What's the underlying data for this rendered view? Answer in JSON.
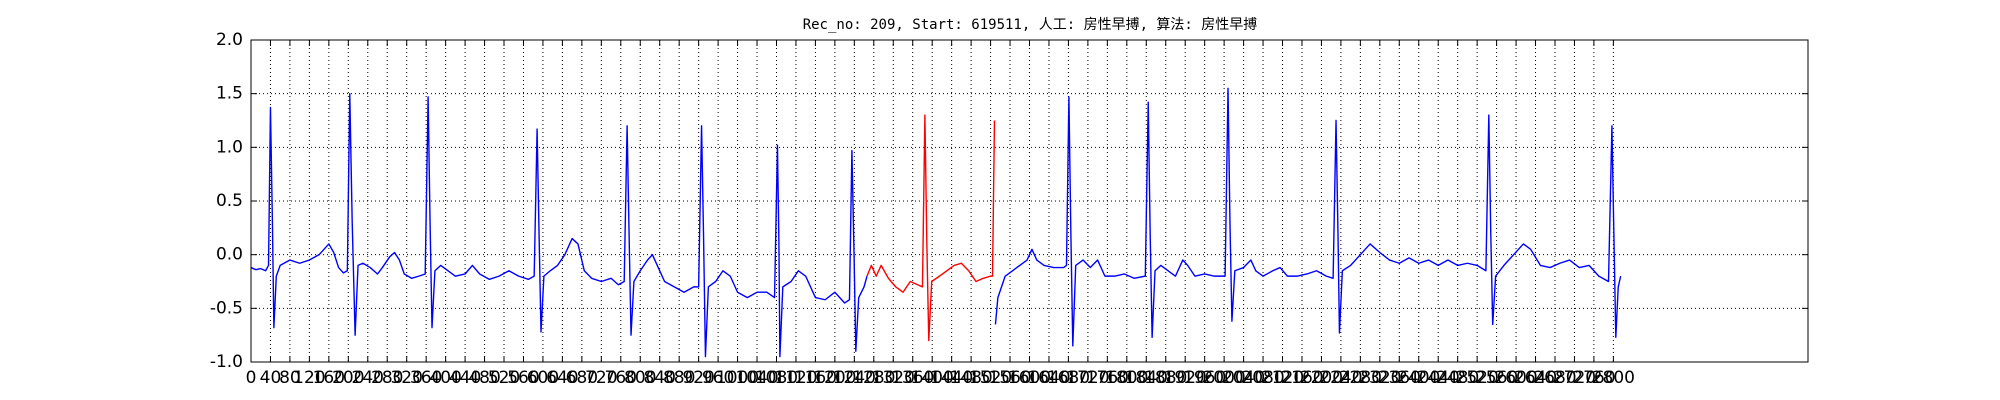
{
  "chart_data": {
    "type": "line",
    "title": "Rec_no: 209, Start: 619511, 人工: 房性早搏, 算法: 房性早搏",
    "xlim": [
      0,
      3200
    ],
    "xticks": [
      0,
      40,
      80,
      120,
      160,
      200,
      240,
      280,
      320,
      360,
      400,
      440,
      480,
      520,
      560,
      600,
      640,
      680,
      720,
      760,
      800,
      840,
      880,
      920,
      960,
      1000,
      1040,
      1080,
      1120,
      1160,
      1200,
      1240,
      1280,
      1320,
      1360,
      1400,
      1440,
      1480,
      1520,
      1560,
      1600,
      1640,
      1680,
      1720,
      1760,
      1800,
      1840,
      1880,
      1920,
      1960,
      2000,
      2040,
      2080,
      2120,
      2160,
      2200,
      2240,
      2280,
      2320,
      2360,
      2400,
      2440,
      2480,
      2520,
      2560,
      2600,
      2640,
      2680,
      2720,
      2760,
      2800
    ],
    "ylim": [
      -1,
      2
    ],
    "yticks": [
      {
        "value": -1,
        "label": "-1.0"
      },
      {
        "value": -0.5,
        "label": "-0.5"
      },
      {
        "value": 0,
        "label": "0.0"
      },
      {
        "value": 0.5,
        "label": "0.5"
      },
      {
        "value": 1,
        "label": "1.0"
      },
      {
        "value": 1.5,
        "label": "1.5"
      },
      {
        "value": 2,
        "label": "2.0"
      }
    ],
    "grid": true,
    "series": [
      {
        "color": "#0000ff",
        "x": [
          0,
          10,
          20,
          30,
          36,
          40,
          44,
          47,
          52,
          60,
          80,
          100,
          120,
          140,
          150,
          160,
          170,
          180,
          190,
          198,
          203,
          208,
          214,
          220,
          230,
          245,
          260,
          270,
          285,
          295,
          305,
          315,
          330,
          345,
          358,
          364,
          368,
          372,
          378,
          390,
          405,
          420,
          440,
          455,
          470,
          490,
          510,
          530,
          550,
          570,
          582,
          588,
          592,
          596,
          602,
          615,
          630,
          645,
          660,
          672,
          685,
          700,
          720,
          740,
          755,
          767,
          773,
          777,
          781,
          787,
          800,
          815,
          825,
          835,
          850,
          870,
          890,
          910,
          920,
          926,
          930,
          934,
          940,
          955,
          970,
          985,
          1000,
          1020,
          1040,
          1060,
          1076,
          1082,
          1085,
          1087,
          1093,
          1110,
          1125,
          1140,
          1160,
          1180,
          1200,
          1220,
          1230,
          1235,
          1239,
          1243,
          1249,
          1260,
          1266
        ],
        "values": [
          -0.12,
          -0.14,
          -0.13,
          -0.15,
          -0.1,
          1.37,
          0.3,
          -0.68,
          -0.2,
          -0.1,
          -0.05,
          -0.08,
          -0.05,
          0,
          0.05,
          0.1,
          0.02,
          -0.12,
          -0.17,
          -0.15,
          1.5,
          0.3,
          -0.75,
          -0.1,
          -0.08,
          -0.12,
          -0.18,
          -0.12,
          -0.02,
          0.02,
          -0.05,
          -0.18,
          -0.22,
          -0.2,
          -0.18,
          1.47,
          0.3,
          -0.68,
          -0.15,
          -0.1,
          -0.15,
          -0.2,
          -0.18,
          -0.1,
          -0.18,
          -0.23,
          -0.2,
          -0.15,
          -0.2,
          -0.23,
          -0.2,
          1.17,
          0.2,
          -0.72,
          -0.2,
          -0.15,
          -0.1,
          0,
          0.15,
          0.1,
          -0.15,
          -0.22,
          -0.25,
          -0.22,
          -0.28,
          -0.25,
          1.2,
          0.2,
          -0.75,
          -0.25,
          -0.15,
          -0.05,
          0,
          -0.1,
          -0.25,
          -0.3,
          -0.35,
          -0.3,
          -0.3,
          1.2,
          0.2,
          -0.95,
          -0.3,
          -0.25,
          -0.15,
          -0.2,
          -0.35,
          -0.4,
          -0.35,
          -0.35,
          -0.4,
          1.02,
          0.1,
          -0.95,
          -0.3,
          -0.25,
          -0.15,
          -0.2,
          -0.4,
          -0.42,
          -0.35,
          -0.45,
          -0.42,
          0.97,
          0.1,
          -0.9,
          -0.4,
          -0.3,
          -0.2
        ]
      },
      {
        "color": "#ff0000",
        "x": [
          1266,
          1275,
          1285,
          1295,
          1310,
          1325,
          1340,
          1355,
          1370,
          1380,
          1385,
          1389,
          1393,
          1399,
          1415,
          1430,
          1445,
          1460,
          1475,
          1490,
          1505,
          1520,
          1524,
          1528
        ],
        "values": [
          -0.2,
          -0.1,
          -0.2,
          -0.1,
          -0.22,
          -0.3,
          -0.35,
          -0.25,
          -0.28,
          -0.3,
          1.3,
          0.1,
          -0.8,
          -0.25,
          -0.2,
          -0.15,
          -0.1,
          -0.08,
          -0.15,
          -0.25,
          -0.22,
          -0.2,
          -0.2,
          1.25
        ]
      },
      {
        "color": "#0000ff",
        "x": [
          1530,
          1535,
          1550,
          1565,
          1580,
          1595,
          1605,
          1615,
          1630,
          1650,
          1670,
          1676,
          1681,
          1685,
          1689,
          1695,
          1710,
          1725,
          1740,
          1755,
          1775,
          1795,
          1815,
          1838,
          1844,
          1848,
          1852,
          1858,
          1870,
          1885,
          1900,
          1915,
          1925,
          1940,
          1960,
          1980,
          2002,
          2008,
          2012,
          2016,
          2022,
          2040,
          2055,
          2065,
          2080,
          2100,
          2115,
          2130,
          2150,
          2170,
          2190,
          2210,
          2224,
          2230,
          2234,
          2237,
          2243,
          2260,
          2280,
          2300,
          2320,
          2340,
          2360,
          2380,
          2400,
          2420,
          2440,
          2460,
          2480,
          2500,
          2520,
          2538,
          2544,
          2548,
          2552,
          2558,
          2575,
          2595,
          2615,
          2630,
          2650,
          2670,
          2690,
          2710,
          2730,
          2750,
          2770,
          2790,
          2797,
          2801,
          2805,
          2810,
          2815
        ],
        "values": [
          -0.65,
          -0.4,
          -0.2,
          -0.15,
          -0.1,
          -0.05,
          0.05,
          -0.05,
          -0.1,
          -0.12,
          -0.12,
          -0.1,
          1.47,
          0.2,
          -0.85,
          -0.1,
          -0.05,
          -0.12,
          -0.05,
          -0.2,
          -0.2,
          -0.18,
          -0.22,
          -0.2,
          1.42,
          0.2,
          -0.77,
          -0.15,
          -0.1,
          -0.15,
          -0.2,
          -0.05,
          -0.1,
          -0.2,
          -0.18,
          -0.2,
          -0.2,
          1.55,
          0.3,
          -0.62,
          -0.15,
          -0.12,
          -0.05,
          -0.15,
          -0.2,
          -0.15,
          -0.12,
          -0.2,
          -0.2,
          -0.18,
          -0.15,
          -0.2,
          -0.22,
          1.25,
          0.2,
          -0.73,
          -0.15,
          -0.1,
          0,
          0.1,
          0.02,
          -0.05,
          -0.08,
          -0.03,
          -0.08,
          -0.05,
          -0.1,
          -0.05,
          -0.1,
          -0.08,
          -0.1,
          -0.15,
          1.3,
          0.2,
          -0.65,
          -0.2,
          -0.1,
          0,
          0.1,
          0.05,
          -0.1,
          -0.12,
          -0.08,
          -0.05,
          -0.12,
          -0.1,
          -0.2,
          -0.25,
          1.2,
          0.2,
          -0.77,
          -0.3,
          -0.2
        ]
      }
    ]
  }
}
